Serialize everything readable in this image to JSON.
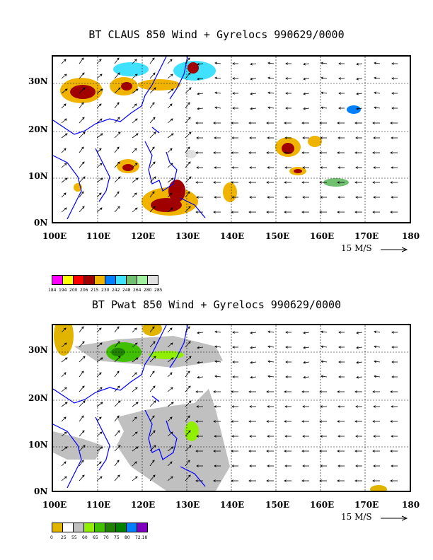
{
  "top_panel": {
    "title": "BT CLAUS 850 Wind + Gyrelocs 990629/0000",
    "x_ticks": [
      "100E",
      "110E",
      "120E",
      "130E",
      "140E",
      "150E",
      "160E",
      "170E",
      "180"
    ],
    "y_ticks": [
      "30N",
      "20N",
      "10N",
      "0N"
    ],
    "scale_label": "15 M/S",
    "legend_colors": [
      "#ff00ff",
      "#ffff00",
      "#ff0000",
      "#a00000",
      "#f0b400",
      "#0080ff",
      "#40e0ff",
      "#70c070",
      "#a0f0a0",
      "#e0e0e0"
    ],
    "legend_labels": [
      "184",
      "194",
      "200",
      "206",
      "215",
      "230",
      "242",
      "248",
      "264",
      "280",
      "285"
    ]
  },
  "bottom_panel": {
    "title": "BT Pwat 850 Wind + Gyrelocs 990629/0000",
    "x_ticks": [
      "100E",
      "110E",
      "120E",
      "130E",
      "140E",
      "150E",
      "160E",
      "170E",
      "180"
    ],
    "y_ticks": [
      "30N",
      "20N",
      "10N",
      "0N"
    ],
    "scale_label": "15 M/S",
    "legend_colors": [
      "#e0b400",
      "#ffffff",
      "#c0c0c0",
      "#90f000",
      "#40c000",
      "#208000",
      "#008000",
      "#0080ff",
      "#8000c0"
    ],
    "legend_labels": [
      "0",
      "25",
      "55",
      "60",
      "65",
      "70",
      "75",
      "80",
      "72.18"
    ]
  },
  "map": {
    "lon_range": [
      100,
      180
    ],
    "lat_range": [
      0,
      36
    ],
    "coastline_color": "#0000ff",
    "grid": "dotted"
  }
}
